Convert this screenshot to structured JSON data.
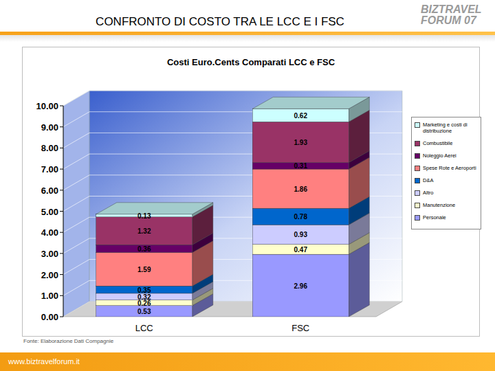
{
  "header": {
    "title": "CONFRONTO DI COSTO TRA LE LCC E I FSC",
    "logo": [
      "BIZTRAVEL",
      "FORUM 07"
    ]
  },
  "footer": {
    "source": "Fonte: Elaborazione Dati Compagnie",
    "url": "www.biztravelforum.it"
  },
  "chart_data": {
    "type": "bar",
    "title": "Costi Euro.Cents Comparati LCC e FSC",
    "categories": [
      "LCC",
      "FSC"
    ],
    "stacked": true,
    "data_labels": true,
    "grid": true,
    "legend": "right",
    "ylim": [
      0,
      10
    ],
    "yticks": [
      {
        "value": 0,
        "label": "0.00"
      },
      {
        "value": 1,
        "label": "1.00"
      },
      {
        "value": 2,
        "label": "2.00"
      },
      {
        "value": 3,
        "label": "3.00"
      },
      {
        "value": 4,
        "label": "4.00"
      },
      {
        "value": 5,
        "label": "5.00"
      },
      {
        "value": 6,
        "label": "6.00"
      },
      {
        "value": 7,
        "label": "7.00"
      },
      {
        "value": 8,
        "label": "8.00"
      },
      {
        "value": 9,
        "label": "9.00"
      },
      {
        "value": 10,
        "label": "10.00"
      }
    ],
    "series": [
      {
        "name": "Personale",
        "color": "#9999ff",
        "values": [
          0.53,
          2.96
        ]
      },
      {
        "name": "Manutenzione",
        "color": "#ffffcc",
        "values": [
          0.26,
          0.47
        ]
      },
      {
        "name": "Altro",
        "color": "#ccccff",
        "values": [
          0.32,
          0.93
        ]
      },
      {
        "name": "D&A",
        "color": "#0066cc",
        "values": [
          0.35,
          0.78
        ]
      },
      {
        "name": "Spese Rote e Aeroporti",
        "color": "#ff8080",
        "values": [
          1.59,
          1.86
        ]
      },
      {
        "name": "Noleggio Aerei",
        "color": "#660066",
        "values": [
          0.36,
          0.31
        ]
      },
      {
        "name": "Combustibile",
        "color": "#993366",
        "values": [
          1.32,
          1.93
        ]
      },
      {
        "name": "Marketing e costi di distribuzione",
        "color": "#ccffff",
        "values": [
          0.13,
          0.62
        ]
      }
    ]
  }
}
